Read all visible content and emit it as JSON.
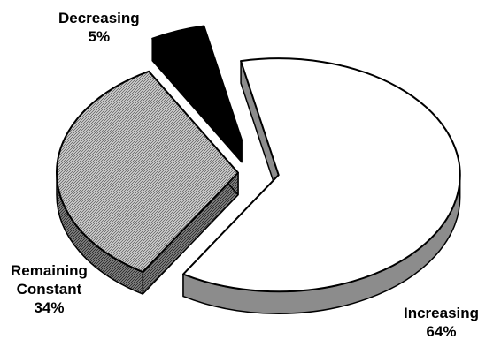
{
  "chart_data": {
    "type": "pie",
    "style": "3d-exploded",
    "title": "",
    "legend": "none",
    "slices": [
      {
        "name": "Increasing",
        "label_lines": [
          "Increasing"
        ],
        "percent_label": "64%",
        "value": 64,
        "fill": "#ffffff",
        "pattern": "none",
        "side_color": "#8c8c8c"
      },
      {
        "name": "Remaining Constant",
        "label_lines": [
          "Remaining",
          "Constant"
        ],
        "percent_label": "34%",
        "value": 34,
        "fill": "#c8c8c8",
        "pattern": "crosshatch",
        "side_color": "#6e6e6e"
      },
      {
        "name": "Decreasing",
        "label_lines": [
          "Decreasing"
        ],
        "percent_label": "5%",
        "value": 5,
        "fill": "#000000",
        "pattern": "none",
        "side_color": "#000000"
      }
    ]
  }
}
